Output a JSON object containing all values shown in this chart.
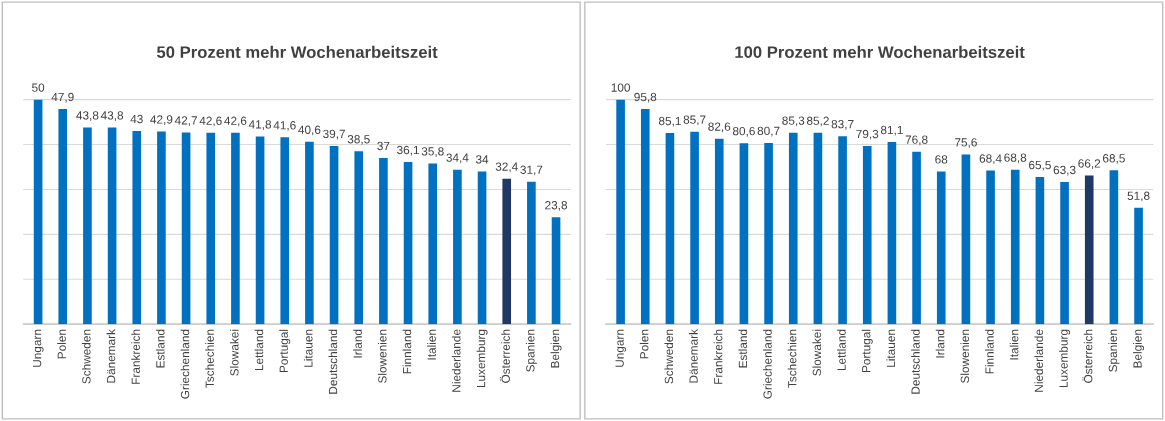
{
  "chart_data": [
    {
      "type": "bar",
      "title": "50 Prozent mehr Wochenarbeitszeit",
      "categories": [
        "Ungarn",
        "Polen",
        "Schweden",
        "Dänemark",
        "Frankreich",
        "Estland",
        "Griechenland",
        "Tschechien",
        "Slowakei",
        "Lettland",
        "Portugal",
        "Litauen",
        "Deutschland",
        "Irland",
        "Slowenien",
        "Finnland",
        "Italien",
        "Niederlande",
        "Luxemburg",
        "Österreich",
        "Spanien",
        "Belgien"
      ],
      "values": [
        50,
        47.9,
        43.8,
        43.8,
        43,
        42.9,
        42.7,
        42.6,
        42.6,
        41.8,
        41.6,
        40.6,
        39.7,
        38.5,
        37,
        36.1,
        35.8,
        34.4,
        34,
        32.4,
        31.7,
        23.8
      ],
      "colors": [
        "#0070c0",
        "#0070c0",
        "#0070c0",
        "#0070c0",
        "#0070c0",
        "#0070c0",
        "#0070c0",
        "#0070c0",
        "#0070c0",
        "#0070c0",
        "#0070c0",
        "#0070c0",
        "#0070c0",
        "#0070c0",
        "#0070c0",
        "#0070c0",
        "#0070c0",
        "#0070c0",
        "#0070c0",
        "#1f3864",
        "#0070c0",
        "#0070c0"
      ],
      "value_labels": [
        "50",
        "47,9",
        "43,8",
        "43,8",
        "43",
        "42,9",
        "42,7",
        "42,6",
        "42,6",
        "41,8",
        "41,6",
        "40,6",
        "39,7",
        "38,5",
        "37",
        "36,1",
        "35,8",
        "34,4",
        "34",
        "32,4",
        "31,7",
        "23,8"
      ],
      "yticks": [
        {
          "value": 0,
          "label": null
        },
        {
          "value": 10,
          "label": null
        },
        {
          "value": 20,
          "label": null
        },
        {
          "value": 30,
          "label": null
        },
        {
          "value": 40,
          "label": null
        },
        {
          "value": 50,
          "label": null
        }
      ],
      "grid": "y",
      "tick_labels": "x"
    },
    {
      "type": "bar",
      "title": "100 Prozent mehr Wochenarbeitszeit",
      "categories": [
        "Ungarn",
        "Polen",
        "Schweden",
        "Dänemark",
        "Frankreich",
        "Estland",
        "Griechenland",
        "Tschechien",
        "Slowakei",
        "Lettland",
        "Portugal",
        "Litauen",
        "Deutschland",
        "Irland",
        "Slowenien",
        "Finnland",
        "Italien",
        "Niederlande",
        "Luxemburg",
        "Österreich",
        "Spanien",
        "Belgien"
      ],
      "values": [
        100,
        95.8,
        85.1,
        85.7,
        82.6,
        80.6,
        80.7,
        85.3,
        85.2,
        83.7,
        79.3,
        81.1,
        76.8,
        68,
        75.6,
        68.4,
        68.8,
        65.5,
        63.3,
        66.2,
        68.5,
        51.8
      ],
      "colors": [
        "#0070c0",
        "#0070c0",
        "#0070c0",
        "#0070c0",
        "#0070c0",
        "#0070c0",
        "#0070c0",
        "#0070c0",
        "#0070c0",
        "#0070c0",
        "#0070c0",
        "#0070c0",
        "#0070c0",
        "#0070c0",
        "#0070c0",
        "#0070c0",
        "#0070c0",
        "#0070c0",
        "#0070c0",
        "#1f3864",
        "#0070c0",
        "#0070c0"
      ],
      "value_labels": [
        "100",
        "95,8",
        "85,1",
        "85,7",
        "82,6",
        "80,6",
        "80,7",
        "85,3",
        "85,2",
        "83,7",
        "79,3",
        "81,1",
        "76,8",
        "68",
        "75,6",
        "68,4",
        "68,8",
        "65,5",
        "63,3",
        "66,2",
        "68,5",
        "51,8"
      ],
      "yticks": [
        {
          "value": 0,
          "label": null
        },
        {
          "value": 20,
          "label": null
        },
        {
          "value": 40,
          "label": null
        },
        {
          "value": 60,
          "label": null
        },
        {
          "value": 80,
          "label": null
        },
        {
          "value": 100,
          "label": null
        }
      ],
      "grid": "y",
      "tick_labels": "x"
    }
  ]
}
